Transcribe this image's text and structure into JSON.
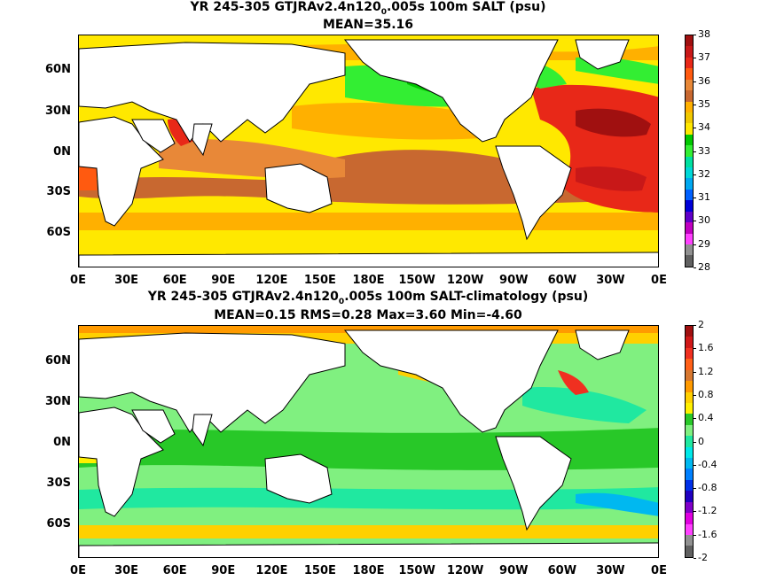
{
  "panels": [
    {
      "title_pre": "YR 245-305 GTJRAv2.4n120",
      "title_sub": "0",
      "title_post": ".005s 100m SALT (psu)",
      "subtitle": "MEAN=35.16",
      "colorbar_labels": [
        "38",
        "37",
        "36",
        "35",
        "34",
        "33",
        "32",
        "31",
        "30",
        "29",
        "28"
      ],
      "colors": [
        "#a01010",
        "#c81818",
        "#e82818",
        "#ff5a10",
        "#e88838",
        "#c86830",
        "#ffb000",
        "#f0c800",
        "#ffe800",
        "#00c800",
        "#33ee33",
        "#00e0a0",
        "#00d8d8",
        "#00a8f0",
        "#0060ff",
        "#0000d8",
        "#6000c8",
        "#c000c0",
        "#ff40ff",
        "#909090",
        "#606060"
      ]
    },
    {
      "title_pre": "YR 245-305 GTJRAv2.4n120",
      "title_sub": "0",
      "title_post": ".005s 100m SALT-climatology (psu)",
      "subtitle": "MEAN=0.15   RMS=0.28   Max=3.60   Min=-4.60",
      "colorbar_labels": [
        "2",
        "1.6",
        "1.2",
        "0.8",
        "0.4",
        "0",
        "-0.4",
        "-0.8",
        "-1.2",
        "-1.6",
        "-2"
      ],
      "colors": [
        "#a01010",
        "#d01818",
        "#f03020",
        "#ff6018",
        "#d87830",
        "#ff9a00",
        "#ffd000",
        "#fff000",
        "#28c828",
        "#80f080",
        "#20e8a0",
        "#00e8e8",
        "#00b8f0",
        "#0080ff",
        "#0030e8",
        "#2000c0",
        "#8000c8",
        "#e000e0",
        "#ff40ff",
        "#909090",
        "#606060"
      ]
    }
  ],
  "axes": {
    "lat_labels": [
      "60N",
      "30N",
      "0N",
      "30S",
      "60S"
    ],
    "lon_labels": [
      "0E",
      "30E",
      "60E",
      "90E",
      "120E",
      "150E",
      "180E",
      "150W",
      "120W",
      "90W",
      "60W",
      "30W",
      "0E"
    ]
  }
}
